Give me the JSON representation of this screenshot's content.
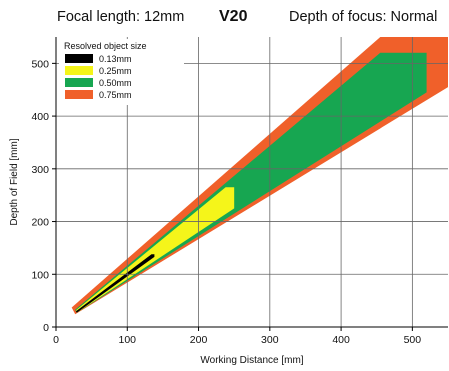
{
  "header": {
    "focal": "Focal length: 12mm",
    "model": "V20",
    "depth": "Depth of focus: Normal"
  },
  "chart_data": {
    "type": "area",
    "xlabel": "Working Distance [mm]",
    "ylabel": "Depth of Field [mm]",
    "xlim": [
      0,
      550
    ],
    "ylim": [
      0,
      550
    ],
    "xticks": [
      0,
      100,
      200,
      300,
      400,
      500
    ],
    "yticks": [
      0,
      100,
      200,
      300,
      400,
      500
    ],
    "grid": true,
    "legend": {
      "title": "Resolved object size",
      "placement": "top-left"
    },
    "series": [
      {
        "name": "0.75mm",
        "color": "#f0602a",
        "polygon": [
          [
            22,
            37
          ],
          [
            27,
            24
          ],
          [
            550,
            455
          ],
          [
            550,
            550
          ],
          [
            455,
            550
          ]
        ]
      },
      {
        "name": "0.50mm",
        "color": "#17a651",
        "polygon": [
          [
            27,
            33
          ],
          [
            29,
            27
          ],
          [
            520,
            445
          ],
          [
            520,
            520
          ],
          [
            455,
            520
          ]
        ]
      },
      {
        "name": "0.25mm",
        "color": "#f5f51a",
        "polygon": [
          [
            28,
            32
          ],
          [
            30,
            28
          ],
          [
            250,
            225
          ],
          [
            250,
            265
          ],
          [
            238,
            265
          ]
        ]
      },
      {
        "name": "0.13mm",
        "color": "#000000",
        "polygon": [
          [
            28,
            30
          ],
          [
            29,
            27
          ],
          [
            138,
            133
          ],
          [
            138,
            138
          ],
          [
            134,
            138
          ]
        ]
      }
    ]
  }
}
